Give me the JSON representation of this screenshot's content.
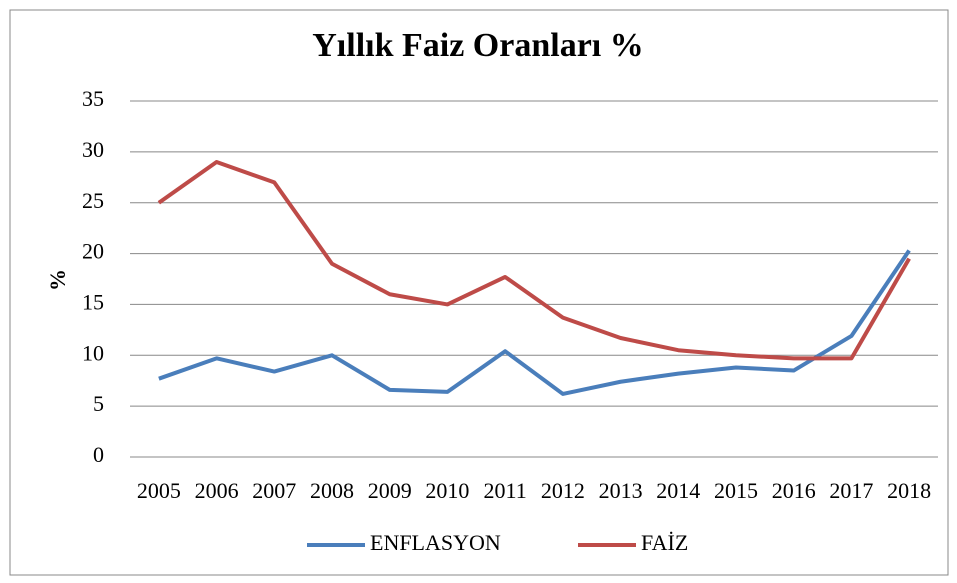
{
  "chart_data": {
    "type": "line",
    "title": "Yıllık Faiz Oranları %",
    "y_label": "%",
    "categories": [
      "2005",
      "2006",
      "2007",
      "2008",
      "2009",
      "2010",
      "2011",
      "2012",
      "2013",
      "2014",
      "2015",
      "2016",
      "2017",
      "2018"
    ],
    "series": [
      {
        "name": "ENFLASYON",
        "color": "#4a7ebb",
        "values": [
          7.7,
          9.7,
          8.4,
          10.0,
          6.6,
          6.4,
          10.4,
          6.2,
          7.4,
          8.2,
          8.8,
          8.5,
          11.9,
          20.3
        ]
      },
      {
        "name": "FAİZ",
        "color": "#be4b48",
        "values": [
          25,
          29,
          27,
          19,
          16,
          15,
          17.7,
          13.7,
          11.7,
          10.5,
          10,
          9.7,
          9.7,
          19.5
        ]
      }
    ],
    "ylim": [
      0,
      35
    ],
    "yticks": [
      0,
      5,
      10,
      15,
      20,
      25,
      30,
      35
    ],
    "grid": true,
    "legend": "bottom"
  }
}
